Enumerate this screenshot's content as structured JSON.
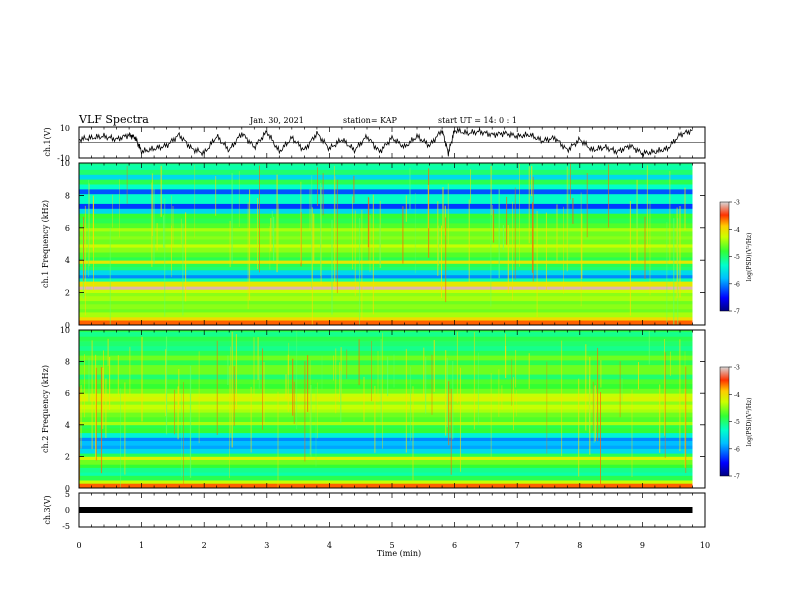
{
  "header": {
    "title": "VLF Spectra",
    "date": "Jan. 30, 2021",
    "station": "station= KAP",
    "start": "start  UT =   14: 0  : 1"
  },
  "chart_data": [
    {
      "type": "line",
      "panel": "ch1-waveform",
      "ylabel": "ch.1(V)",
      "ylim": [
        -10,
        10
      ],
      "yticks": [
        "10",
        "-10"
      ],
      "xlim": [
        0,
        9.8
      ],
      "x": [
        0,
        0.2,
        0.4,
        0.6,
        0.8,
        0.9,
        1.0,
        1.2,
        1.4,
        1.6,
        1.8,
        2.0,
        2.2,
        2.4,
        2.6,
        2.8,
        3.0,
        3.2,
        3.4,
        3.6,
        3.8,
        4.0,
        4.2,
        4.4,
        4.6,
        4.8,
        5.0,
        5.2,
        5.4,
        5.6,
        5.8,
        5.9,
        6.0,
        6.2,
        6.4,
        6.6,
        6.8,
        7.0,
        7.2,
        7.4,
        7.6,
        7.8,
        8.0,
        8.2,
        8.4,
        8.6,
        8.8,
        9.0,
        9.2,
        9.4,
        9.6,
        9.8
      ],
      "y": [
        2,
        3,
        4,
        2,
        5,
        3,
        -6,
        -4,
        -2,
        5,
        -4,
        -7,
        4,
        -5,
        6,
        -3,
        7,
        -6,
        3,
        -5,
        6,
        -4,
        2,
        -5,
        4,
        -6,
        3,
        -3,
        4,
        -2,
        8,
        -7,
        8,
        6,
        7,
        5,
        6,
        4,
        5,
        1,
        3,
        -5,
        2,
        -5,
        -3,
        -6,
        -2,
        -7,
        -6,
        -4,
        5,
        8
      ]
    },
    {
      "type": "heatmap",
      "panel": "ch1-spectrogram",
      "ylabel": "ch.1 Frequency (kHz)",
      "ylim": [
        0,
        10
      ],
      "yticks": [
        "0",
        "2",
        "4",
        "6",
        "8",
        "10"
      ],
      "xlim": [
        0,
        9.8
      ],
      "clim": [
        -7,
        -3
      ],
      "colorbar_label": "log(PSD)(V²/Hz)",
      "colorbar_ticks": [
        "-3",
        "-4",
        "-5",
        "-6",
        "-7"
      ],
      "freq_kHz": [
        0,
        0.3,
        0.5,
        0.8,
        1.0,
        1.3,
        1.5,
        1.8,
        2.0,
        2.2,
        2.4,
        2.7,
        2.9,
        3.1,
        3.4,
        3.6,
        3.8,
        4.0,
        4.2,
        4.5,
        4.8,
        5.0,
        5.3,
        5.5,
        5.8,
        6.0,
        6.3,
        6.6,
        6.9,
        7.2,
        7.5,
        7.8,
        8.1,
        8.4,
        8.7,
        9.0,
        9.3,
        9.6,
        9.9
      ],
      "log_psd": [
        -3.6,
        -4.0,
        -4.4,
        -4.6,
        -4.5,
        -4.6,
        -4.4,
        -4.5,
        -4.3,
        -3.1,
        -4.1,
        -5.2,
        -6.0,
        -5.6,
        -5.0,
        -4.9,
        -4.1,
        -4.9,
        -4.7,
        -4.5,
        -4.3,
        -4.6,
        -4.5,
        -4.6,
        -4.4,
        -4.7,
        -4.9,
        -4.8,
        -5.6,
        -6.3,
        -5.3,
        -5.3,
        -6.2,
        -5.3,
        -4.9,
        -5.6,
        -5.0,
        -5.2,
        -5.1
      ]
    },
    {
      "type": "heatmap",
      "panel": "ch2-spectrogram",
      "ylabel": "ch.2 Frequency (kHz)",
      "ylim": [
        0,
        10
      ],
      "yticks": [
        "0",
        "2",
        "4",
        "6",
        "8",
        "10"
      ],
      "xlim": [
        0,
        9.8
      ],
      "clim": [
        -7,
        -3
      ],
      "colorbar_label": "log(PSD)(V²/Hz)",
      "colorbar_ticks": [
        "-3",
        "-4",
        "-5",
        "-6",
        "-7"
      ],
      "freq_kHz": [
        0,
        0.3,
        0.5,
        0.8,
        1.0,
        1.3,
        1.5,
        1.8,
        2.0,
        2.2,
        2.5,
        2.7,
        3.0,
        3.2,
        3.5,
        3.8,
        4.0,
        4.2,
        4.5,
        4.8,
        5.0,
        5.3,
        5.5,
        5.8,
        6.0,
        6.3,
        6.6,
        6.9,
        7.2,
        7.5,
        7.8,
        8.1,
        8.4,
        8.7,
        9.0,
        9.3,
        9.6,
        9.9
      ],
      "log_psd": [
        -3.6,
        -4.3,
        -4.9,
        -5.2,
        -5.1,
        -4.8,
        -4.6,
        -4.2,
        -4.9,
        -5.6,
        -5.9,
        -5.8,
        -6.0,
        -5.4,
        -4.8,
        -4.9,
        -4.4,
        -4.7,
        -4.6,
        -4.4,
        -4.3,
        -4.5,
        -4.2,
        -4.3,
        -4.6,
        -4.8,
        -4.7,
        -5.0,
        -4.6,
        -4.6,
        -4.9,
        -4.6,
        -4.9,
        -5.1,
        -5.0,
        -4.9,
        -5.1,
        -4.9
      ]
    },
    {
      "type": "line",
      "panel": "ch3-waveform",
      "ylabel": "ch.3(V)",
      "ylim": [
        -5,
        5
      ],
      "yticks": [
        "5",
        "0",
        "-5"
      ],
      "xlim": [
        0,
        9.8
      ],
      "x": [
        0,
        9.8
      ],
      "y": [
        0,
        0
      ]
    }
  ],
  "x_axis": {
    "label": "Time  (min)",
    "ticks": [
      "0",
      "1",
      "2",
      "3",
      "4",
      "5",
      "6",
      "7",
      "8",
      "9",
      "10"
    ],
    "range": [
      0,
      10
    ]
  },
  "colors": {
    "colormap": [
      "#00007f",
      "#0000ff",
      "#007fff",
      "#00ffff",
      "#7fff7f",
      "#00ff00",
      "#ffff00",
      "#ff7f00",
      "#ff0000",
      "#7f0000"
    ]
  }
}
